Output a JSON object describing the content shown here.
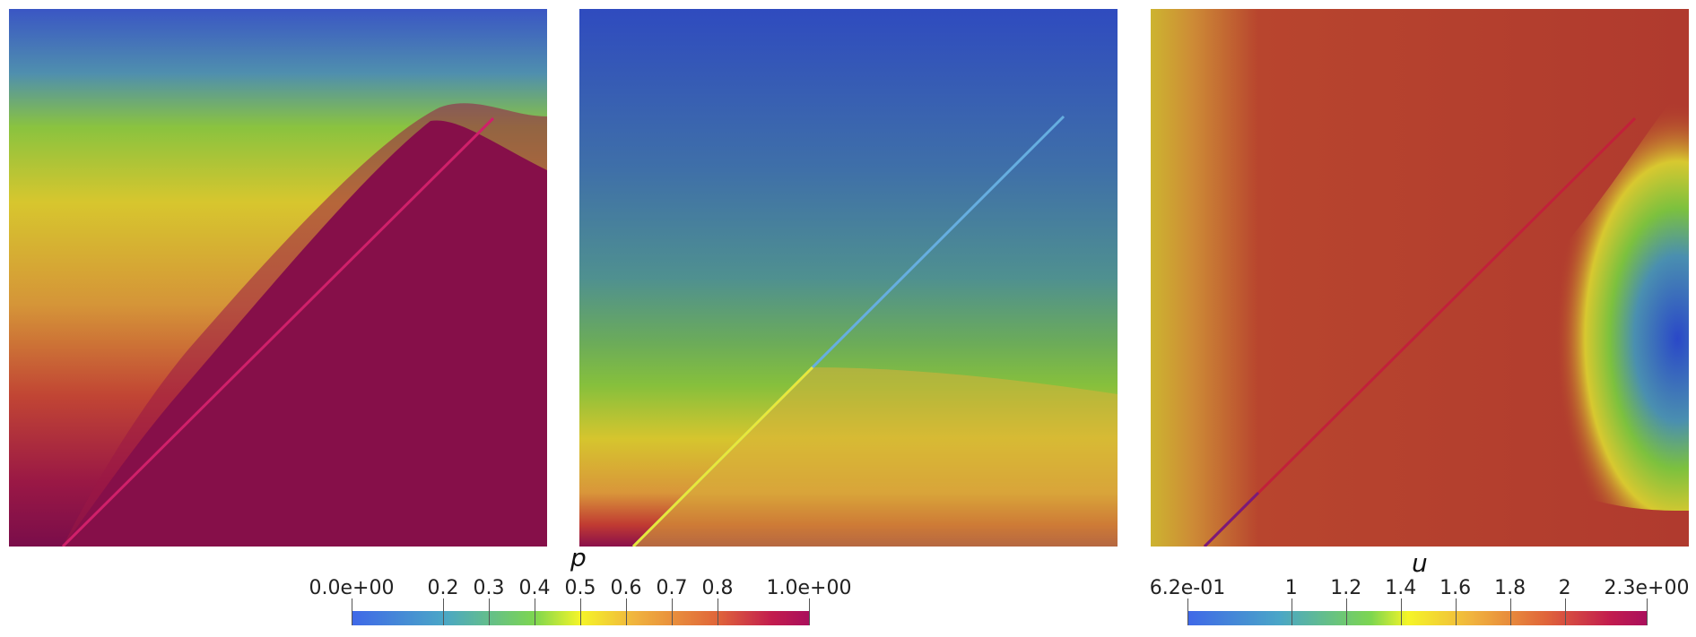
{
  "panels": [
    {
      "name": "left-field-panel"
    },
    {
      "name": "middle-field-panel"
    },
    {
      "name": "right-field-panel"
    }
  ],
  "colorbars": {
    "p": {
      "title": "p",
      "ticks": [
        {
          "label": "0.0e+00",
          "value": 0.0
        },
        {
          "label": "0.2",
          "value": 0.2
        },
        {
          "label": "0.3",
          "value": 0.3
        },
        {
          "label": "0.4",
          "value": 0.4
        },
        {
          "label": "0.5",
          "value": 0.5
        },
        {
          "label": "0.6",
          "value": 0.6
        },
        {
          "label": "0.7",
          "value": 0.7
        },
        {
          "label": "0.8",
          "value": 0.8
        },
        {
          "label": "1.0e+00",
          "value": 1.0
        }
      ],
      "range": [
        0.0,
        1.0
      ]
    },
    "u": {
      "title": "u",
      "ticks": [
        {
          "label": "6.2e-01",
          "value": 0.62
        },
        {
          "label": "1",
          "value": 1.0
        },
        {
          "label": "1.2",
          "value": 1.2
        },
        {
          "label": "1.4",
          "value": 1.4
        },
        {
          "label": "1.6",
          "value": 1.6
        },
        {
          "label": "1.8",
          "value": 1.8
        },
        {
          "label": "2",
          "value": 2.0
        },
        {
          "label": "2.3e+00",
          "value": 2.3
        }
      ],
      "range": [
        0.62,
        2.3
      ]
    }
  },
  "colors": {
    "blue": "#2f4bbf",
    "green": "#7cc13e",
    "yellow": "#d9cc2f",
    "orange": "#d98a35",
    "red": "#b03a2e",
    "magenta": "#8a0f4a"
  }
}
